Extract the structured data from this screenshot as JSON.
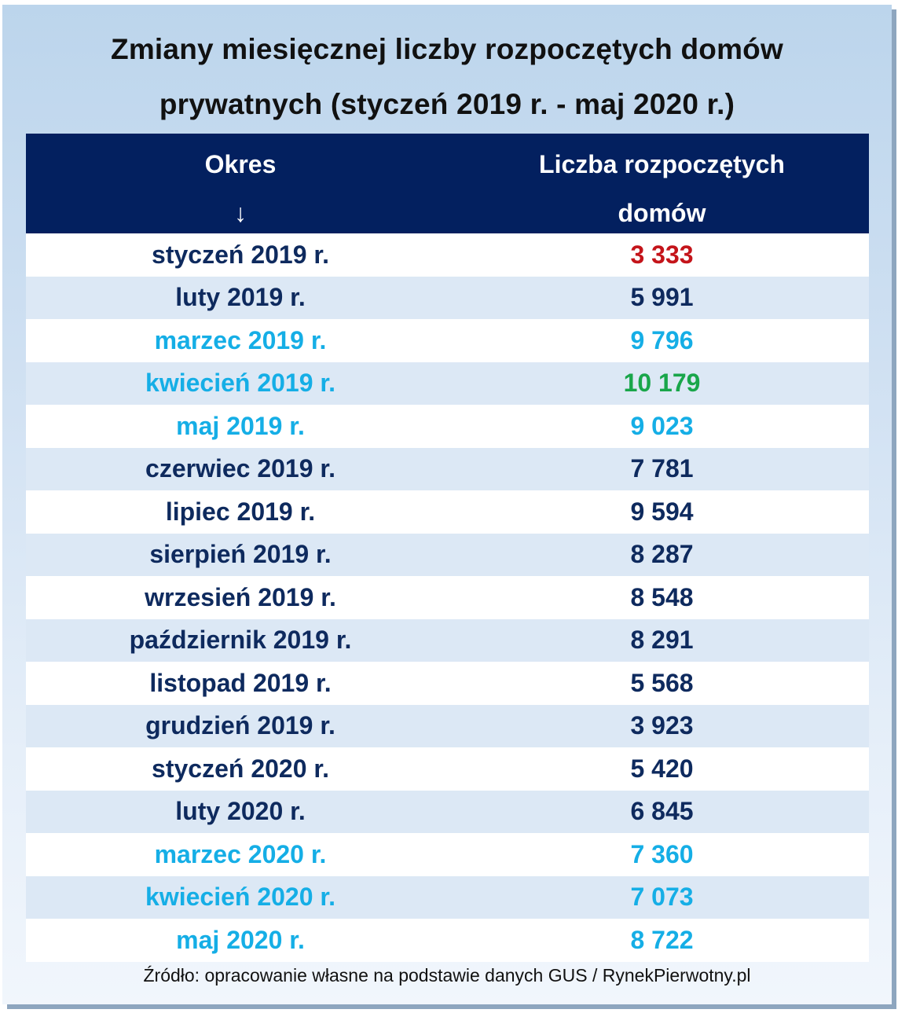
{
  "title": {
    "line1": "Zmiany miesięcznej liczby rozpoczętych domów",
    "line2": "prywatnych (styczeń 2019 r. - maj 2020 r.)"
  },
  "table": {
    "headers": {
      "period": "Okres",
      "period_arrow": "↓",
      "count_line1": "Liczba rozpoczętych",
      "count_line2": "domów"
    },
    "rows": [
      {
        "period": "styczeń 2019 r.",
        "count": "3 333",
        "period_style": "default",
        "count_style": "min"
      },
      {
        "period": "luty 2019 r.",
        "count": "5 991",
        "period_style": "default",
        "count_style": "default"
      },
      {
        "period": "marzec 2019 r.",
        "count": "9 796",
        "period_style": "highlight",
        "count_style": "highlight"
      },
      {
        "period": "kwiecień 2019 r.",
        "count": "10 179",
        "period_style": "highlight",
        "count_style": "max"
      },
      {
        "period": "maj 2019 r.",
        "count": "9 023",
        "period_style": "highlight",
        "count_style": "highlight"
      },
      {
        "period": "czerwiec 2019 r.",
        "count": "7 781",
        "period_style": "default",
        "count_style": "default"
      },
      {
        "period": "lipiec 2019 r.",
        "count": "9 594",
        "period_style": "default",
        "count_style": "default"
      },
      {
        "period": "sierpień 2019 r.",
        "count": "8 287",
        "period_style": "default",
        "count_style": "default"
      },
      {
        "period": "wrzesień 2019 r.",
        "count": "8 548",
        "period_style": "default",
        "count_style": "default"
      },
      {
        "period": "październik 2019 r.",
        "count": "8 291",
        "period_style": "default",
        "count_style": "default"
      },
      {
        "period": "listopad 2019 r.",
        "count": "5 568",
        "period_style": "default",
        "count_style": "default"
      },
      {
        "period": "grudzień 2019 r.",
        "count": "3 923",
        "period_style": "default",
        "count_style": "default"
      },
      {
        "period": "styczeń 2020 r.",
        "count": "5 420",
        "period_style": "default",
        "count_style": "default"
      },
      {
        "period": "luty 2020 r.",
        "count": "6 845",
        "period_style": "default",
        "count_style": "default"
      },
      {
        "period": "marzec 2020 r.",
        "count": "7 360",
        "period_style": "highlight",
        "count_style": "highlight"
      },
      {
        "period": "kwiecień 2020 r.",
        "count": "7 073",
        "period_style": "highlight",
        "count_style": "highlight"
      },
      {
        "period": "maj 2020 r.",
        "count": "8 722",
        "period_style": "highlight",
        "count_style": "highlight"
      }
    ]
  },
  "source": "Źródło: opracowanie własne na podstawie danych GUS / RynekPierwotny.pl",
  "colors": {
    "header_bg": "#03205f",
    "default_text": "#0e2a5e",
    "highlight_text": "#15aee6",
    "min_value": "#c4141a",
    "max_value": "#19a64a",
    "row_alt_bg": "#dce8f5"
  }
}
